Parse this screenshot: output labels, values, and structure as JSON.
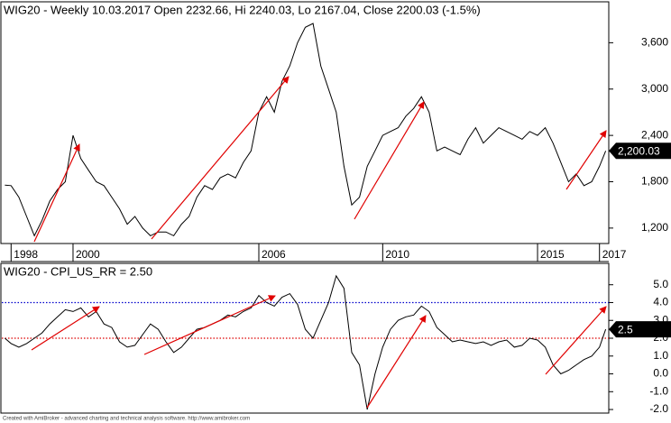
{
  "chart_data": [
    {
      "type": "line",
      "title": "WIG20 - Weekly 10.03.2017 Open 2232.66, Hi 2240.03, Lo 2167.04, Close 2200.03 (-1.5%)",
      "x": [
        1997.8,
        1998,
        1998.25,
        1998.5,
        1998.75,
        1999,
        1999.25,
        1999.5,
        1999.75,
        2000,
        2000.25,
        2000.5,
        2000.75,
        2001,
        2001.25,
        2001.5,
        2001.75,
        2002,
        2002.25,
        2002.5,
        2002.75,
        2003,
        2003.25,
        2003.5,
        2003.75,
        2004,
        2004.25,
        2004.5,
        2004.75,
        2005,
        2005.25,
        2005.5,
        2005.75,
        2006,
        2006.25,
        2006.5,
        2006.75,
        2007,
        2007.25,
        2007.5,
        2007.75,
        2008,
        2008.25,
        2008.5,
        2008.75,
        2009,
        2009.25,
        2009.5,
        2009.75,
        2010,
        2010.25,
        2010.5,
        2010.75,
        2011,
        2011.25,
        2011.5,
        2011.75,
        2012,
        2012.25,
        2012.5,
        2012.75,
        2013,
        2013.25,
        2013.5,
        2013.75,
        2014,
        2014.25,
        2014.5,
        2014.75,
        2015,
        2015.25,
        2015.5,
        2015.75,
        2016,
        2016.25,
        2016.5,
        2016.75,
        2017,
        2017.2
      ],
      "values": [
        1757,
        1750,
        1600,
        1350,
        1100,
        1300,
        1550,
        1700,
        1800,
        2400,
        2100,
        1950,
        1800,
        1750,
        1600,
        1450,
        1250,
        1350,
        1200,
        1100,
        1150,
        1150,
        1100,
        1250,
        1350,
        1600,
        1750,
        1700,
        1850,
        1900,
        1850,
        2050,
        2200,
        2700,
        2900,
        2700,
        3100,
        3300,
        3600,
        3800,
        3850,
        3300,
        3000,
        2700,
        2000,
        1500,
        1600,
        2000,
        2200,
        2400,
        2450,
        2500,
        2650,
        2750,
        2900,
        2700,
        2200,
        2250,
        2200,
        2150,
        2350,
        2500,
        2300,
        2400,
        2500,
        2450,
        2400,
        2350,
        2450,
        2400,
        2500,
        2300,
        2050,
        1800,
        1900,
        1750,
        1800,
        2000,
        2200
      ],
      "color": "#000000",
      "xlim": [
        1997.7,
        2017.3
      ],
      "xticks": [
        1998,
        2000,
        2006,
        2010,
        2015,
        2017
      ],
      "ylim": [
        1000,
        4130
      ],
      "yticks": [
        {
          "value": 1200,
          "label": "1,200"
        },
        {
          "value": 1800,
          "label": "1,800"
        },
        {
          "value": 2400,
          "label": "2,400"
        },
        {
          "value": 3000,
          "label": "3,000"
        },
        {
          "value": 3600,
          "label": "3,600"
        }
      ],
      "last_tag": {
        "value": 2200.03,
        "label": "2,200.03"
      }
    },
    {
      "type": "line",
      "title": "WIG20 - CPI_US_RR = 2.50",
      "x": [
        1997.8,
        1998,
        1998.25,
        1998.5,
        1998.75,
        1999,
        1999.25,
        1999.5,
        1999.75,
        2000,
        2000.25,
        2000.5,
        2000.75,
        2001,
        2001.25,
        2001.5,
        2001.75,
        2002,
        2002.25,
        2002.5,
        2002.75,
        2003,
        2003.25,
        2003.5,
        2003.75,
        2004,
        2004.25,
        2004.5,
        2004.75,
        2005,
        2005.25,
        2005.5,
        2005.75,
        2006,
        2006.25,
        2006.5,
        2006.75,
        2007,
        2007.25,
        2007.5,
        2007.75,
        2008,
        2008.25,
        2008.5,
        2008.75,
        2009,
        2009.25,
        2009.5,
        2009.75,
        2010,
        2010.25,
        2010.5,
        2010.75,
        2011,
        2011.25,
        2011.5,
        2011.75,
        2012,
        2012.25,
        2012.5,
        2012.75,
        2013,
        2013.25,
        2013.5,
        2013.75,
        2014,
        2014.25,
        2014.5,
        2014.75,
        2015,
        2015.25,
        2015.5,
        2015.75,
        2016,
        2016.25,
        2016.5,
        2016.75,
        2017,
        2017.2
      ],
      "values": [
        2.0,
        1.7,
        1.5,
        1.7,
        2.0,
        2.3,
        2.8,
        3.2,
        3.6,
        3.5,
        3.7,
        3.2,
        3.5,
        2.8,
        2.6,
        1.8,
        1.5,
        1.6,
        2.2,
        2.8,
        2.5,
        1.8,
        1.2,
        1.5,
        2.0,
        2.5,
        2.6,
        2.8,
        3.0,
        3.3,
        3.2,
        3.5,
        3.7,
        4.4,
        4.0,
        3.8,
        4.3,
        4.5,
        3.9,
        2.5,
        2.0,
        3.0,
        4.0,
        5.5,
        4.8,
        1.2,
        0.5,
        -2.0,
        0.0,
        1.5,
        2.5,
        3.0,
        3.2,
        3.3,
        3.8,
        3.5,
        2.6,
        2.2,
        1.8,
        1.9,
        1.8,
        1.7,
        1.8,
        1.6,
        1.8,
        1.9,
        1.5,
        1.6,
        2.0,
        1.9,
        1.5,
        0.5,
        0.0,
        0.2,
        0.5,
        0.8,
        1.0,
        1.5,
        2.5
      ],
      "color": "#000000",
      "xlim": [
        1997.7,
        2017.3
      ],
      "ylim": [
        -2.2,
        6.2
      ],
      "yticks": [
        {
          "value": -2,
          "label": "-2.0"
        },
        {
          "value": -1,
          "label": "-1.0"
        },
        {
          "value": 0,
          "label": "0.0"
        },
        {
          "value": 1,
          "label": "1.0"
        },
        {
          "value": 2,
          "label": "2.0"
        },
        {
          "value": 3,
          "label": "3.0"
        },
        {
          "value": 4,
          "label": "4.0"
        },
        {
          "value": 5,
          "label": "5.0"
        }
      ],
      "ref_lines": [
        {
          "value": 4,
          "color": "#0000cc"
        },
        {
          "value": 2,
          "color": "#dd0000"
        }
      ],
      "last_tag": 2.5
    }
  ],
  "footer": "Created with AmiBroker - advanced charting and technical analysis software. http://www.amibroker.com"
}
